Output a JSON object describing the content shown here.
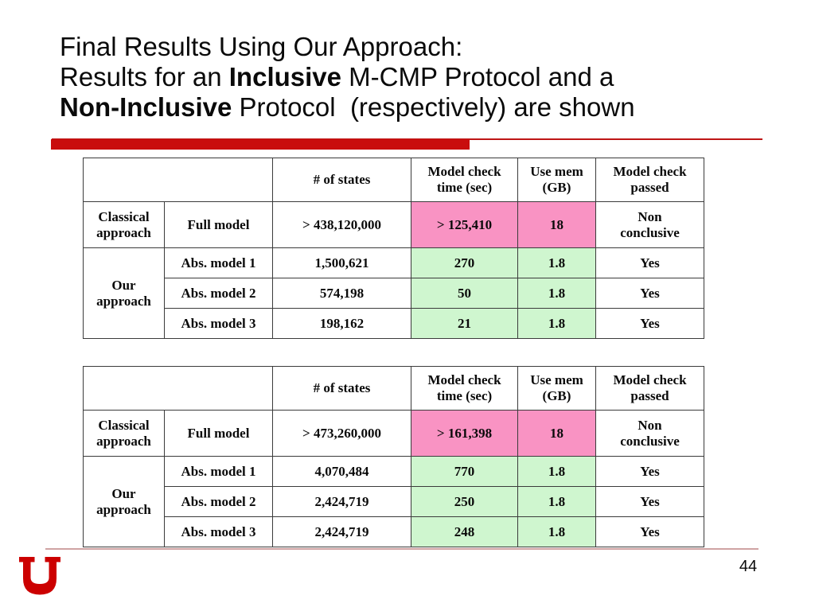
{
  "colors": {
    "bar": "#C90D0D",
    "line": "#BE1616",
    "pink": "#F993C3",
    "green": "#CFF6CF",
    "footline": "#CFA3A3",
    "logo": "#CC0000",
    "border": "#3B3B3B",
    "text": "#0A0A0A"
  },
  "title": {
    "lines": [
      [
        {
          "t": "Final Results Using Our Approach:",
          "b": false
        }
      ],
      [
        {
          "t": "Results for an ",
          "b": false
        },
        {
          "t": "Inclusive",
          "b": true
        },
        {
          "t": " M-CMP Protocol and a",
          "b": false
        }
      ],
      [
        {
          "t": "Non-Inclusive",
          "b": true
        },
        {
          "t": " Protocol  (respectively) are shown",
          "b": false
        }
      ]
    ]
  },
  "tables": [
    {
      "name": "inclusive-protocol-results",
      "header": {
        "states": "# of states",
        "time": "Model check\ntime (sec)",
        "mem": "Use mem\n(GB)",
        "passed": "Model check\npassed"
      },
      "rows": [
        {
          "group": "Classical approach",
          "model": "Full model",
          "states": "> 438,120,000",
          "time": "> 125,410",
          "mem": "18",
          "passed": "Non\nconclusive",
          "highlight": "pink"
        },
        {
          "group": "Our approach",
          "model": "Abs. model 1",
          "states": "1,500,621",
          "time": "270",
          "mem": "1.8",
          "passed": "Yes",
          "highlight": "green"
        },
        {
          "model": "Abs. model 2",
          "states": "574,198",
          "time": "50",
          "mem": "1.8",
          "passed": "Yes",
          "highlight": "green"
        },
        {
          "model": "Abs. model 3",
          "states": "198,162",
          "time": "21",
          "mem": "1.8",
          "passed": "Yes",
          "highlight": "green"
        }
      ]
    },
    {
      "name": "non-inclusive-protocol-results",
      "header": {
        "states": "# of states",
        "time": "Model check\ntime (sec)",
        "mem": "Use mem\n(GB)",
        "passed": "Model check\npassed"
      },
      "rows": [
        {
          "group": "Classical approach",
          "model": "Full model",
          "states": "> 473,260,000",
          "time": "> 161,398",
          "mem": "18",
          "passed": "Non\nconclusive",
          "highlight": "pink"
        },
        {
          "group": "Our approach",
          "model": "Abs. model 1",
          "states": "4,070,484",
          "time": "770",
          "mem": "1.8",
          "passed": "Yes",
          "highlight": "green"
        },
        {
          "model": "Abs. model 2",
          "states": "2,424,719",
          "time": "250",
          "mem": "1.8",
          "passed": "Yes",
          "highlight": "green"
        },
        {
          "model": "Abs. model 3",
          "states": "2,424,719",
          "time": "248",
          "mem": "1.8",
          "passed": "Yes",
          "highlight": "green"
        }
      ]
    }
  ],
  "footer": {
    "page_number": "44",
    "logo": "university-of-utah-block-u"
  }
}
